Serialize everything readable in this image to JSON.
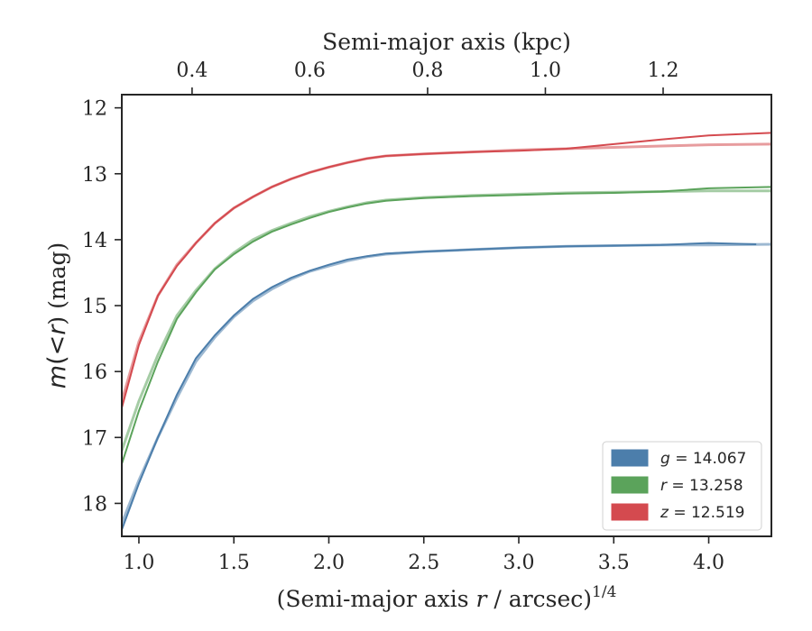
{
  "chart_data": {
    "type": "line",
    "xlabel": "(Semi-major axis r / arcsec)^1/4",
    "xlabel_parts": {
      "pre": "(Semi-major axis ",
      "var": "r",
      "post": " / arcsec)",
      "sup": "1/4"
    },
    "ylabel": "m(<r) (mag)",
    "ylabel_parts": {
      "var": "m",
      "mid": "(<",
      "var2": "r",
      "post": ") (mag)"
    },
    "x2label": "Semi-major axis (kpc)",
    "xlim": [
      0.91,
      4.33
    ],
    "ylim": [
      18.5,
      11.8
    ],
    "y_inverted": true,
    "xticks": [
      "1.0",
      "1.5",
      "2.0",
      "2.5",
      "3.0",
      "3.5",
      "4.0"
    ],
    "xtick_values": [
      1.0,
      1.5,
      2.0,
      2.5,
      3.0,
      3.5,
      4.0
    ],
    "yticks": [
      "12",
      "13",
      "14",
      "15",
      "16",
      "17",
      "18"
    ],
    "ytick_values": [
      12,
      13,
      14,
      15,
      16,
      17,
      18
    ],
    "x2ticks": [
      "0.4",
      "0.6",
      "0.8",
      "1.0",
      "1.2"
    ],
    "x2tick_positions_x": [
      1.28,
      1.9,
      2.52,
      3.14,
      3.76
    ],
    "legend_position": "lower-right",
    "grid": false,
    "series": [
      {
        "name": "g = 14.067",
        "label_var": "g",
        "label_value": "14.067",
        "color": "#4c7eab",
        "x": [
          0.91,
          1.0,
          1.1,
          1.2,
          1.3,
          1.4,
          1.5,
          1.6,
          1.7,
          1.8,
          1.9,
          2.0,
          2.1,
          2.2,
          2.3,
          2.5,
          2.75,
          3.0,
          3.25,
          3.5,
          3.75,
          4.0,
          4.25
        ],
        "y": [
          18.4,
          17.7,
          17.0,
          16.35,
          15.8,
          15.45,
          15.15,
          14.9,
          14.72,
          14.58,
          14.47,
          14.38,
          14.3,
          14.25,
          14.21,
          14.18,
          14.15,
          14.12,
          14.1,
          14.09,
          14.08,
          14.05,
          14.07
        ],
        "model_x": [
          0.91,
          1.0,
          1.1,
          1.2,
          1.3,
          1.4,
          1.5,
          1.6,
          1.7,
          1.8,
          1.9,
          2.0,
          2.1,
          2.2,
          2.3,
          2.5,
          2.75,
          3.0,
          3.25,
          3.5,
          3.75,
          4.0,
          4.33
        ],
        "model_y": [
          18.3,
          17.65,
          17.0,
          16.4,
          15.85,
          15.48,
          15.17,
          14.93,
          14.75,
          14.6,
          14.48,
          14.4,
          14.32,
          14.26,
          14.22,
          14.18,
          14.15,
          14.12,
          14.1,
          14.09,
          14.08,
          14.08,
          14.07
        ]
      },
      {
        "name": "r = 13.258",
        "label_var": "r",
        "label_value": "13.258",
        "color": "#5ba35b",
        "x": [
          0.91,
          1.0,
          1.1,
          1.2,
          1.3,
          1.4,
          1.5,
          1.6,
          1.7,
          1.8,
          1.9,
          2.0,
          2.1,
          2.2,
          2.3,
          2.5,
          2.75,
          3.0,
          3.25,
          3.5,
          3.75,
          4.0,
          4.33
        ],
        "y": [
          17.4,
          16.6,
          15.85,
          15.2,
          14.8,
          14.45,
          14.22,
          14.03,
          13.88,
          13.77,
          13.67,
          13.58,
          13.51,
          13.45,
          13.41,
          13.37,
          13.34,
          13.32,
          13.3,
          13.29,
          13.27,
          13.22,
          13.2
        ],
        "model_x": [
          0.91,
          1.0,
          1.1,
          1.2,
          1.3,
          1.4,
          1.5,
          1.6,
          1.7,
          1.8,
          1.9,
          2.0,
          2.1,
          2.2,
          2.3,
          2.5,
          2.75,
          3.0,
          3.25,
          3.5,
          3.75,
          4.0,
          4.33
        ],
        "model_y": [
          17.2,
          16.45,
          15.75,
          15.15,
          14.77,
          14.44,
          14.2,
          14.0,
          13.86,
          13.75,
          13.65,
          13.57,
          13.5,
          13.44,
          13.4,
          13.36,
          13.33,
          13.31,
          13.29,
          13.28,
          13.27,
          13.26,
          13.26
        ]
      },
      {
        "name": "z = 12.519",
        "label_var": "z",
        "label_value": "12.519",
        "color": "#d44a4f",
        "x": [
          0.91,
          1.0,
          1.1,
          1.2,
          1.25,
          1.3,
          1.4,
          1.5,
          1.6,
          1.7,
          1.8,
          1.9,
          2.0,
          2.1,
          2.2,
          2.3,
          2.5,
          2.75,
          3.0,
          3.25,
          3.5,
          3.75,
          4.0,
          4.33
        ],
        "y": [
          16.55,
          15.6,
          14.85,
          14.4,
          14.23,
          14.05,
          13.75,
          13.52,
          13.35,
          13.2,
          13.08,
          12.98,
          12.9,
          12.83,
          12.77,
          12.73,
          12.7,
          12.67,
          12.65,
          12.62,
          12.55,
          12.48,
          12.42,
          12.38
        ],
        "model_x": [
          0.91,
          1.0,
          1.1,
          1.2,
          1.3,
          1.4,
          1.5,
          1.6,
          1.7,
          1.8,
          1.9,
          2.0,
          2.1,
          2.2,
          2.3,
          2.5,
          2.75,
          3.0,
          3.25,
          3.5,
          3.75,
          4.0,
          4.33
        ],
        "model_y": [
          16.45,
          15.55,
          14.85,
          14.38,
          14.05,
          13.75,
          13.52,
          13.35,
          13.2,
          13.08,
          12.98,
          12.9,
          12.83,
          12.77,
          12.73,
          12.7,
          12.67,
          12.64,
          12.62,
          12.6,
          12.58,
          12.56,
          12.55
        ]
      }
    ]
  }
}
